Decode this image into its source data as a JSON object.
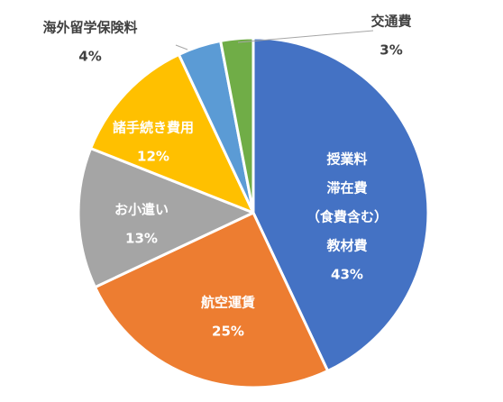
{
  "chart_data": {
    "type": "pie",
    "title": "",
    "slices": [
      {
        "label": [
          "授業料",
          "滞在費",
          "（食費含む）",
          "教材費"
        ],
        "value": 43,
        "percent_label": "43%",
        "color": "#4472C4",
        "label_color": "#ffffff"
      },
      {
        "label": [
          "航空運賃"
        ],
        "value": 25,
        "percent_label": "25%",
        "color": "#ED7D31",
        "label_color": "#ffffff"
      },
      {
        "label": [
          "お小遣い"
        ],
        "value": 13,
        "percent_label": "13%",
        "color": "#A5A5A5",
        "label_color": "#ffffff"
      },
      {
        "label": [
          "諸手続き費用"
        ],
        "value": 12,
        "percent_label": "12%",
        "color": "#FFC000",
        "label_color": "#ffffff"
      },
      {
        "label": [
          "海外留学保険料"
        ],
        "value": 4,
        "percent_label": "4%",
        "color": "#5B9BD5",
        "label_color": "#404040"
      },
      {
        "label": [
          "交通費"
        ],
        "value": 3,
        "percent_label": "3%",
        "color": "#70AD47",
        "label_color": "#404040"
      }
    ]
  }
}
